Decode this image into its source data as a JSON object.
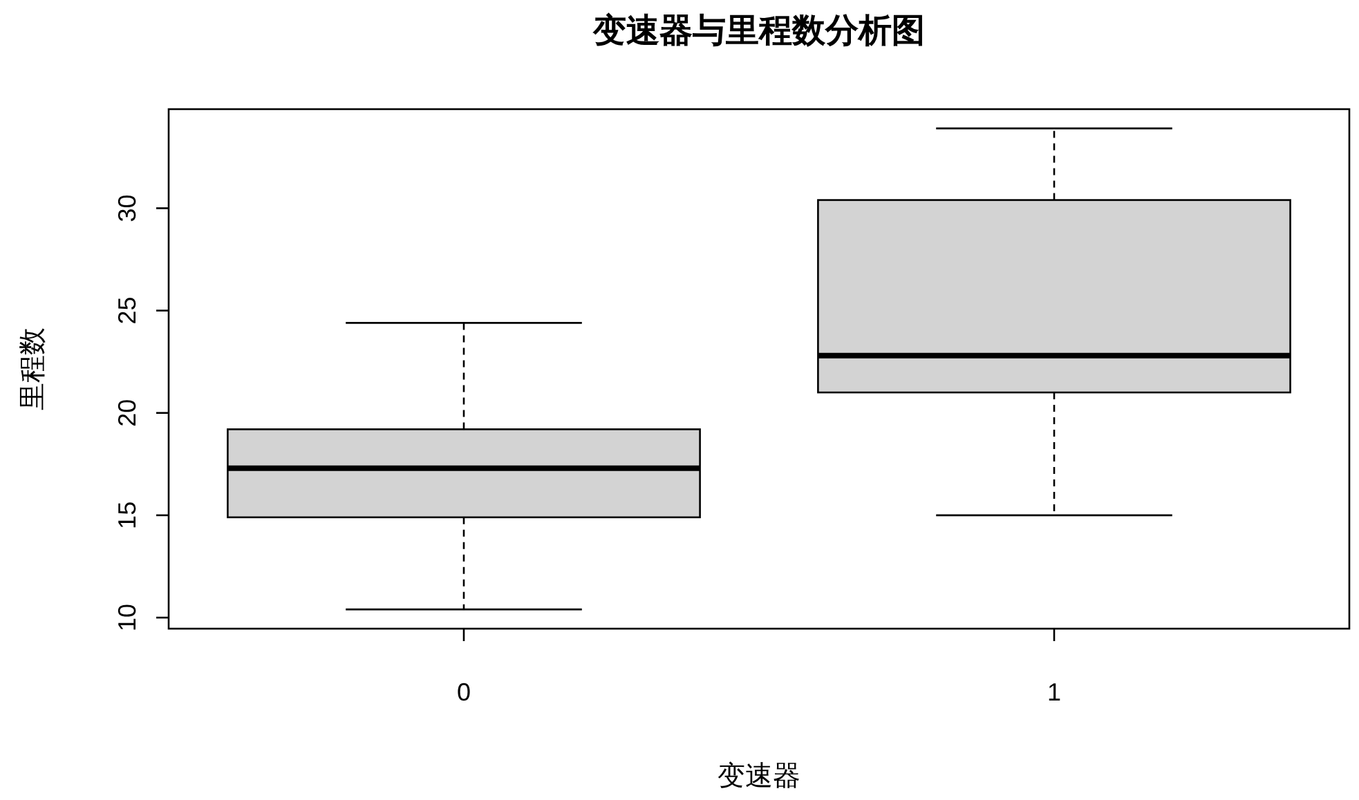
{
  "chart_data": {
    "type": "box",
    "title": "变速器与里程数分析图",
    "xlabel": "变速器",
    "ylabel": "里程数",
    "categories": [
      "0",
      "1"
    ],
    "series": [
      {
        "color": "#d3d3d3",
        "boxes": [
          {
            "low": 10.4,
            "q1": 14.9,
            "median": 17.3,
            "q3": 19.2,
            "high": 24.4
          },
          {
            "low": 15.0,
            "q1": 21.0,
            "median": 22.8,
            "q3": 30.4,
            "high": 33.9
          }
        ]
      }
    ],
    "ylim": [
      9.46,
      34.84
    ],
    "yticks": [
      10,
      15,
      20,
      25,
      30
    ],
    "grid": false
  }
}
